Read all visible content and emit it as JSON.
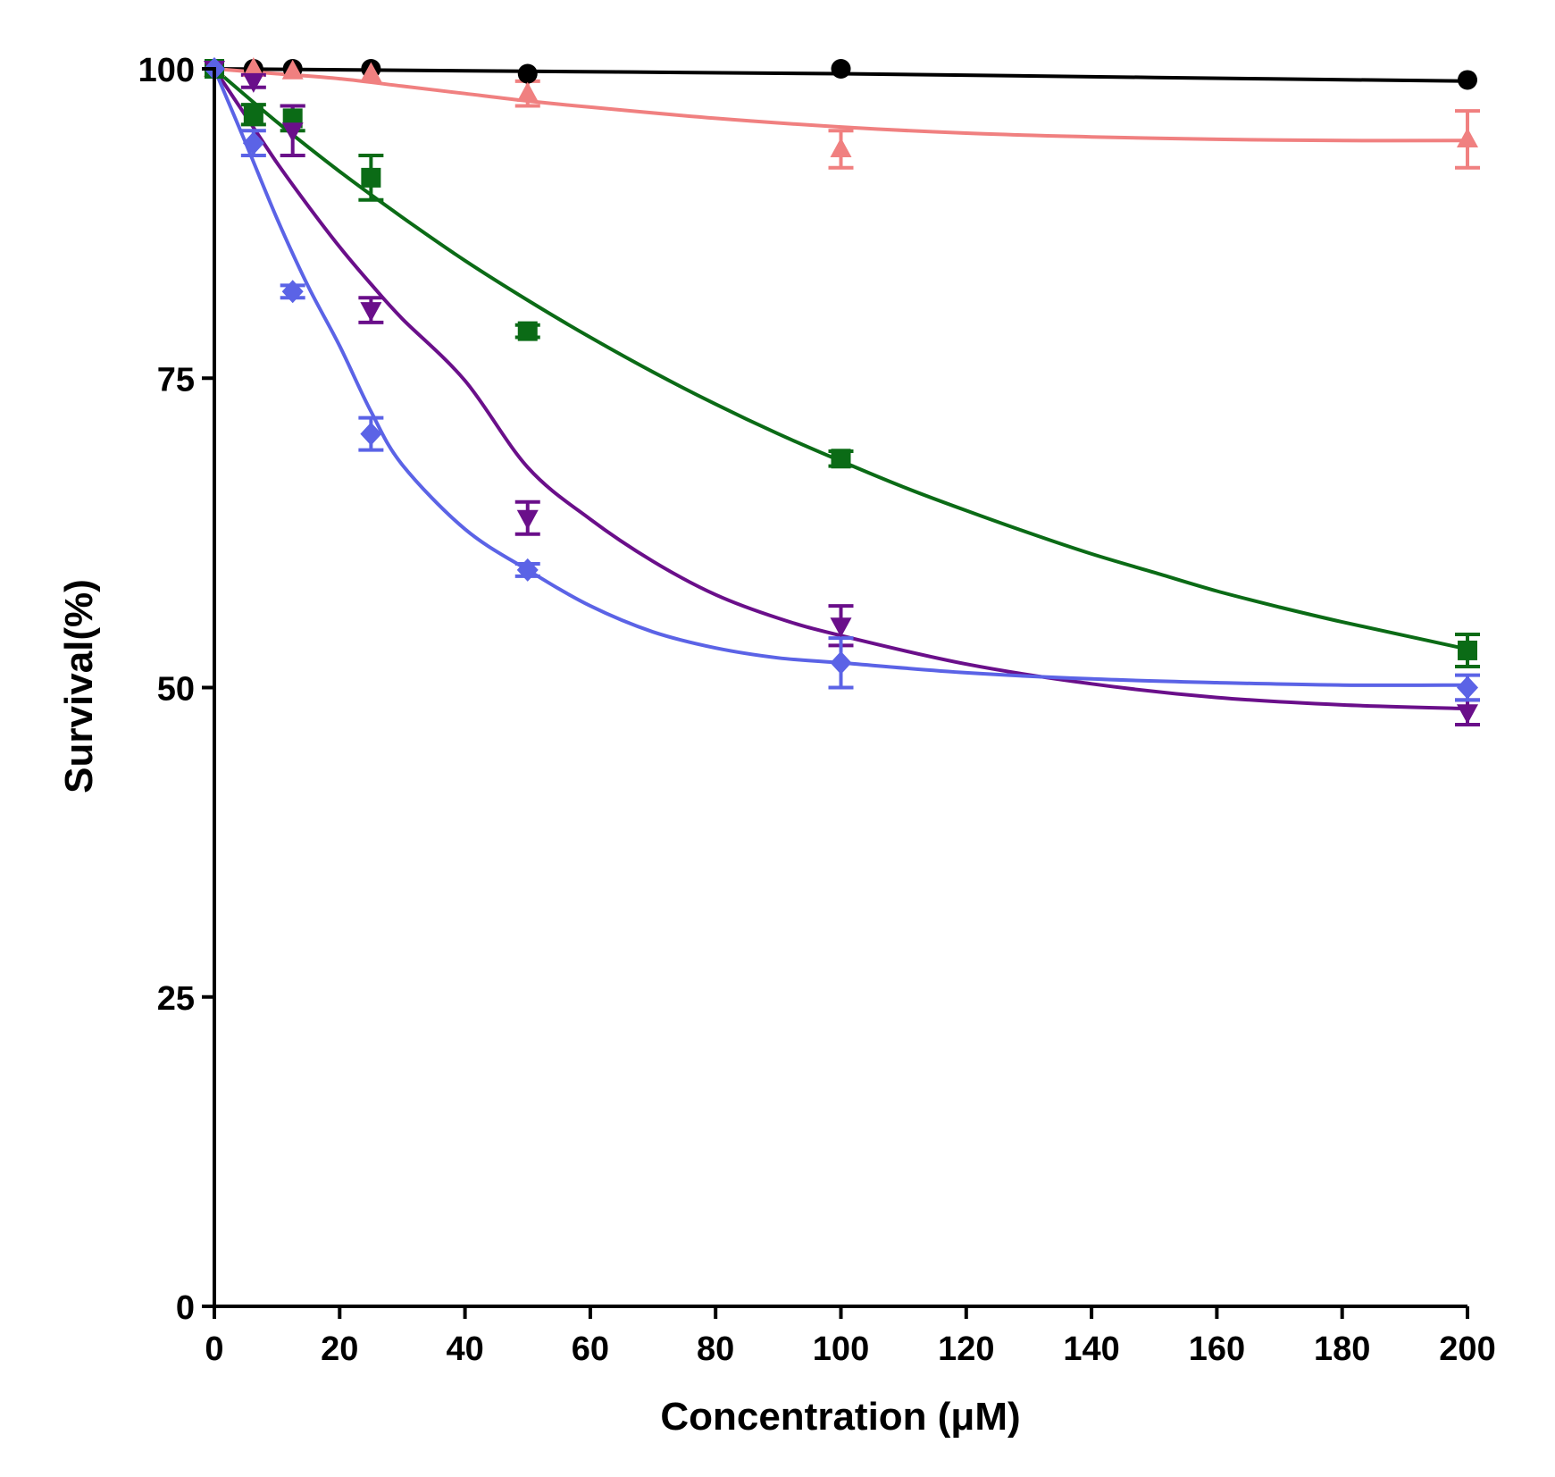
{
  "chart_data": {
    "type": "line",
    "title": "",
    "xlabel": "Concentration (μM)",
    "ylabel": "Survival(%)",
    "xlim": [
      0,
      200
    ],
    "ylim": [
      0,
      100
    ],
    "xticks": [
      "0",
      "20",
      "40",
      "60",
      "80",
      "100",
      "120",
      "140",
      "160",
      "180",
      "200"
    ],
    "yticks": [
      "0",
      "25",
      "50",
      "75",
      "100"
    ],
    "grid": false,
    "legend": "none",
    "series": [
      {
        "name": "black-circle",
        "color": "#000000",
        "marker": "circle",
        "x": [
          0,
          6.25,
          12.5,
          25,
          50,
          100,
          200
        ],
        "y": [
          100,
          100,
          100,
          100,
          99.6,
          100,
          99.1
        ],
        "err": [
          0,
          0,
          0,
          0,
          0,
          0,
          0
        ],
        "fit": [
          [
            0,
            100
          ],
          [
            50,
            99.8
          ],
          [
            100,
            99.6
          ],
          [
            150,
            99.3
          ],
          [
            200,
            99.0
          ]
        ]
      },
      {
        "name": "pink-triangle",
        "color": "#f08080",
        "marker": "triangle",
        "x": [
          0,
          6.25,
          12.5,
          25,
          50,
          100,
          200
        ],
        "y": [
          100,
          100,
          99.8,
          99.6,
          98,
          93.5,
          94.3
        ],
        "err": [
          0,
          0,
          0,
          0,
          1.0,
          1.5,
          2.3
        ],
        "fit": [
          [
            0,
            100
          ],
          [
            10,
            99.6
          ],
          [
            20,
            99.2
          ],
          [
            30,
            98.6
          ],
          [
            40,
            98.0
          ],
          [
            50,
            97.4
          ],
          [
            60,
            96.9
          ],
          [
            80,
            96.0
          ],
          [
            100,
            95.3
          ],
          [
            120,
            94.8
          ],
          [
            140,
            94.5
          ],
          [
            160,
            94.3
          ],
          [
            180,
            94.2
          ],
          [
            200,
            94.2
          ]
        ]
      },
      {
        "name": "green-square",
        "color": "#0b6b16",
        "marker": "square",
        "x": [
          0,
          6.25,
          12.5,
          25,
          50,
          100,
          200
        ],
        "y": [
          100,
          96.3,
          96,
          91.2,
          78.8,
          68.5,
          53
        ],
        "err": [
          0,
          0.8,
          1.0,
          1.8,
          0.5,
          0.6,
          1.3
        ],
        "fit": [
          [
            0,
            100
          ],
          [
            10,
            95.7
          ],
          [
            20,
            91.7
          ],
          [
            30,
            88.0
          ],
          [
            40,
            84.5
          ],
          [
            50,
            81.3
          ],
          [
            60,
            78.3
          ],
          [
            70,
            75.5
          ],
          [
            80,
            72.9
          ],
          [
            90,
            70.5
          ],
          [
            100,
            68.3
          ],
          [
            110,
            66.2
          ],
          [
            120,
            64.3
          ],
          [
            130,
            62.5
          ],
          [
            140,
            60.8
          ],
          [
            150,
            59.3
          ],
          [
            160,
            57.8
          ],
          [
            170,
            56.5
          ],
          [
            180,
            55.3
          ],
          [
            190,
            54.2
          ],
          [
            200,
            53.1
          ]
        ]
      },
      {
        "name": "purple-inverted-triangle",
        "color": "#6a0f8a",
        "marker": "triangle-down",
        "x": [
          0,
          6.25,
          12.5,
          25,
          50,
          100,
          200
        ],
        "y": [
          100,
          99,
          95,
          80.5,
          63.7,
          55,
          48
        ],
        "err": [
          0,
          0.5,
          2.0,
          1.0,
          1.3,
          1.6,
          1.0
        ],
        "fit": [
          [
            0,
            100
          ],
          [
            5,
            96.2
          ],
          [
            10,
            92.4
          ],
          [
            15,
            88.9
          ],
          [
            20,
            85.6
          ],
          [
            25,
            82.6
          ],
          [
            30,
            79.8
          ],
          [
            40,
            74.8
          ],
          [
            50,
            67.8
          ],
          [
            60,
            63.6
          ],
          [
            70,
            60.2
          ],
          [
            80,
            57.5
          ],
          [
            90,
            55.6
          ],
          [
            100,
            54.2
          ],
          [
            120,
            51.9
          ],
          [
            140,
            50.3
          ],
          [
            160,
            49.2
          ],
          [
            180,
            48.6
          ],
          [
            200,
            48.3
          ]
        ]
      },
      {
        "name": "blue-diamond",
        "color": "#5b63e6",
        "marker": "diamond",
        "x": [
          0,
          6.25,
          12.5,
          25,
          50,
          100,
          200
        ],
        "y": [
          100,
          94,
          82,
          70.5,
          59.5,
          52,
          50
        ],
        "err": [
          0,
          1.0,
          0.5,
          1.3,
          0.5,
          2.0,
          1.0
        ],
        "fit": [
          [
            0,
            100
          ],
          [
            5,
            94.0
          ],
          [
            10,
            87.9
          ],
          [
            15,
            82.4
          ],
          [
            20,
            77.6
          ],
          [
            25,
            72.3
          ],
          [
            30,
            68.0
          ],
          [
            40,
            62.8
          ],
          [
            50,
            59.5
          ],
          [
            60,
            56.6
          ],
          [
            70,
            54.5
          ],
          [
            80,
            53.2
          ],
          [
            90,
            52.4
          ],
          [
            100,
            52.0
          ],
          [
            120,
            51.2
          ],
          [
            140,
            50.7
          ],
          [
            160,
            50.4
          ],
          [
            180,
            50.2
          ],
          [
            200,
            50.2
          ]
        ]
      }
    ]
  }
}
